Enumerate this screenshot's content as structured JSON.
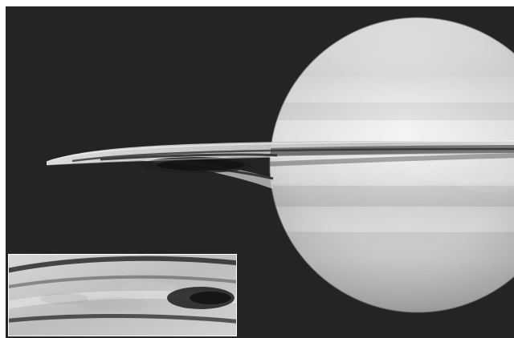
{
  "image": {
    "subject": "planet-with-rings",
    "has_inset": true,
    "colors": {
      "frame": "#ffffff",
      "space": "#242424",
      "planet_light": "#ededed",
      "planet_mid": "#c9c9c9",
      "planet_dark": "#9a9a9a",
      "ring_light": "#d6d6d6",
      "ring_gap": "#3a3a3a",
      "inset_border": "#ffffff"
    }
  }
}
